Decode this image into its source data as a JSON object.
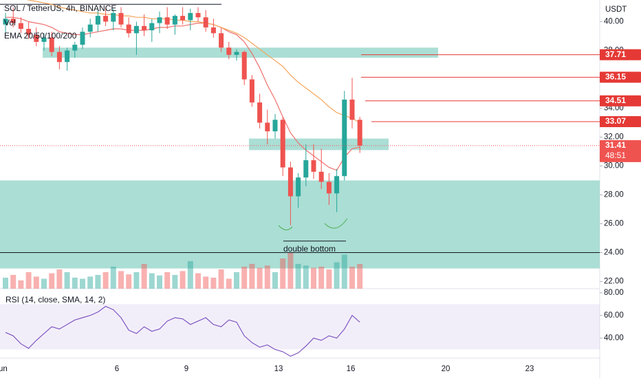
{
  "header": {
    "symbol": "SOL / TetherUS, 4h, BINANCE",
    "indicators": [
      "Vol",
      "EMA 20/50/100/200"
    ],
    "currency": "USDT"
  },
  "chart_data": [
    {
      "type": "candlestick",
      "up_color": "#26a69a",
      "down_color": "#ef5350",
      "candles": [
        [
          39.8,
          40.6,
          39.2,
          40.2
        ],
        [
          40.2,
          41,
          39.6,
          39.9
        ],
        [
          39.9,
          40.3,
          39.2,
          39.5
        ],
        [
          39.5,
          40,
          38.8,
          39.1
        ],
        [
          39.1,
          39.6,
          38.3,
          38.6
        ],
        [
          38.6,
          39.2,
          38,
          38.9
        ],
        [
          38.9,
          39.3,
          37.6,
          37.9
        ],
        [
          37.9,
          38.3,
          36.7,
          37.2
        ],
        [
          37.2,
          38.2,
          36.6,
          38
        ],
        [
          38,
          38.6,
          37.5,
          38.4
        ],
        [
          38.4,
          39.6,
          38.1,
          39.3
        ],
        [
          39.3,
          40.2,
          38.9,
          39.8
        ],
        [
          39.8,
          40.8,
          39.3,
          40.4
        ],
        [
          40.4,
          41,
          39.7,
          40
        ],
        [
          40,
          40.9,
          39.4,
          40.6
        ],
        [
          40.6,
          41,
          39.6,
          39.8
        ],
        [
          39.8,
          40.3,
          38.9,
          39.2
        ],
        [
          39.2,
          40,
          37.7,
          39.7
        ],
        [
          39.7,
          40.5,
          39,
          39.4
        ],
        [
          39.4,
          40.2,
          38.6,
          39.9
        ],
        [
          39.9,
          40.7,
          39.2,
          40.3
        ],
        [
          40.3,
          41,
          39.5,
          39.8
        ],
        [
          39.8,
          40.5,
          39.1,
          40.4
        ],
        [
          40.4,
          41,
          39.8,
          40.1
        ],
        [
          40.1,
          40.9,
          39.4,
          40.6
        ],
        [
          40.6,
          41,
          40,
          40.3
        ],
        [
          40.3,
          40.8,
          39.3,
          39.6
        ],
        [
          39.6,
          40.2,
          38.9,
          39.2
        ],
        [
          39.2,
          39.6,
          37.9,
          38.2
        ],
        [
          38.2,
          38.6,
          37.4,
          37.7
        ],
        [
          37.7,
          38.1,
          37.3,
          37.9
        ],
        [
          37.9,
          38,
          35.6,
          36
        ],
        [
          36,
          36.3,
          34.1,
          34.4
        ],
        [
          34.4,
          35,
          32.6,
          33
        ],
        [
          33,
          33.9,
          31.5,
          32.4
        ],
        [
          32.4,
          33.6,
          31.9,
          33.2
        ],
        [
          33.2,
          33.4,
          29.3,
          29.9
        ],
        [
          29.9,
          30.3,
          25.9,
          27.9
        ],
        [
          27.9,
          29.5,
          27.1,
          29.2
        ],
        [
          29.2,
          31.5,
          28.6,
          30.4
        ],
        [
          30.4,
          31.5,
          29.1,
          29.6
        ],
        [
          29.6,
          31.2,
          28.4,
          28.9
        ],
        [
          28.9,
          29.5,
          27.3,
          28.1
        ],
        [
          28.1,
          29.8,
          26.8,
          29.3
        ],
        [
          29.3,
          35.2,
          29,
          34.6
        ],
        [
          34.6,
          36.1,
          32.6,
          33.2
        ],
        [
          33.2,
          33.4,
          30.9,
          31.41
        ]
      ],
      "volume": [
        20,
        25,
        15,
        30,
        22,
        18,
        28,
        35,
        30,
        20,
        18,
        22,
        25,
        30,
        40,
        32,
        26,
        30,
        45,
        28,
        24,
        30,
        25,
        32,
        50,
        28,
        22,
        20,
        35,
        18,
        30,
        40,
        45,
        38,
        42,
        30,
        55,
        65,
        45,
        42,
        38,
        40,
        35,
        48,
        62,
        40,
        45
      ],
      "ema_lines": [
        {
          "color": "#ef6f6c",
          "values": [
            40.3,
            40.3,
            40.2,
            40.0,
            39.9,
            39.8,
            39.6,
            39.3,
            39.2,
            39.1,
            39.1,
            39.2,
            39.3,
            39.4,
            39.5,
            39.5,
            39.4,
            39.4,
            39.4,
            39.5,
            39.6,
            39.6,
            39.7,
            39.7,
            39.8,
            39.9,
            39.9,
            39.8,
            39.6,
            39.3,
            39.1,
            38.6,
            37.8,
            36.8,
            35.6,
            34.6,
            33.4,
            32.3,
            31.6,
            31.1,
            30.7,
            30.3,
            29.9,
            29.7,
            30.6,
            31.2,
            31.3
          ]
        },
        {
          "color": "#f5a55a",
          "values": [
            41.8,
            41.7,
            41.6,
            41.5,
            41.4,
            41.3,
            41.2,
            41.0,
            40.9,
            40.8,
            40.7,
            40.6,
            40.6,
            40.5,
            40.5,
            40.4,
            40.4,
            40.3,
            40.3,
            40.2,
            40.2,
            40.2,
            40.1,
            40.1,
            40.0,
            40.0,
            39.9,
            39.8,
            39.6,
            39.4,
            39.2,
            38.9,
            38.5,
            38.1,
            37.7,
            37.3,
            36.9,
            36.3,
            35.8,
            35.4,
            35.0,
            34.6,
            34.1,
            33.7,
            33.5,
            33.3,
            33.0
          ]
        }
      ],
      "ylim": [
        21.5,
        41.5
      ],
      "yticks": [
        {
          "value": 22,
          "label": "22.00"
        },
        {
          "value": 24,
          "label": "24.00"
        },
        {
          "value": 26,
          "label": "26.00"
        },
        {
          "value": 28,
          "label": "28.00"
        },
        {
          "value": 30,
          "label": "30.00"
        },
        {
          "value": 32,
          "label": "32.00"
        },
        {
          "value": 34,
          "label": "34.00"
        },
        {
          "value": 36,
          "label": "36.00"
        },
        {
          "value": 38,
          "label": "38.00"
        },
        {
          "value": 40,
          "label": "40.00"
        }
      ],
      "zones": [
        {
          "from": 37.5,
          "to": 38.2
        },
        {
          "from": 31.1,
          "to": 31.9
        },
        {
          "from": 22.9,
          "to": 29.0
        }
      ],
      "levels": [
        24,
        41.2
      ],
      "price_tags": [
        {
          "value": 37.71,
          "label": "37.71"
        },
        {
          "value": 36.15,
          "label": "36.15"
        },
        {
          "value": 34.51,
          "label": "34.51"
        },
        {
          "value": 33.07,
          "label": "33.07"
        },
        {
          "value": 31.41,
          "label": "31.41"
        }
      ],
      "countdown": "48:51",
      "annotation": {
        "text": "double bottom",
        "level": 24.8
      },
      "date_labels": [
        "un",
        "6",
        "9",
        "13",
        "16",
        "20",
        "23"
      ]
    },
    {
      "type": "line",
      "title": "RSI (14, close, SMA, 14, 2)",
      "color": "#7e57c2",
      "values": [
        45,
        42,
        35,
        31,
        38,
        44,
        50,
        48,
        52,
        56,
        58,
        60,
        63,
        68,
        65,
        58,
        47,
        44,
        50,
        46,
        48,
        55,
        58,
        57,
        52,
        55,
        58,
        52,
        50,
        56,
        54,
        42,
        36,
        32,
        34,
        30,
        28,
        24,
        27,
        33,
        40,
        38,
        42,
        40,
        48,
        60,
        54
      ],
      "ylim": [
        22.4,
        83.6
      ],
      "band": [
        30,
        70
      ],
      "yticks": [
        {
          "value": 40,
          "label": "40.00"
        },
        {
          "value": 60,
          "label": "60.00"
        },
        {
          "value": 80,
          "label": "80.00"
        }
      ]
    }
  ]
}
